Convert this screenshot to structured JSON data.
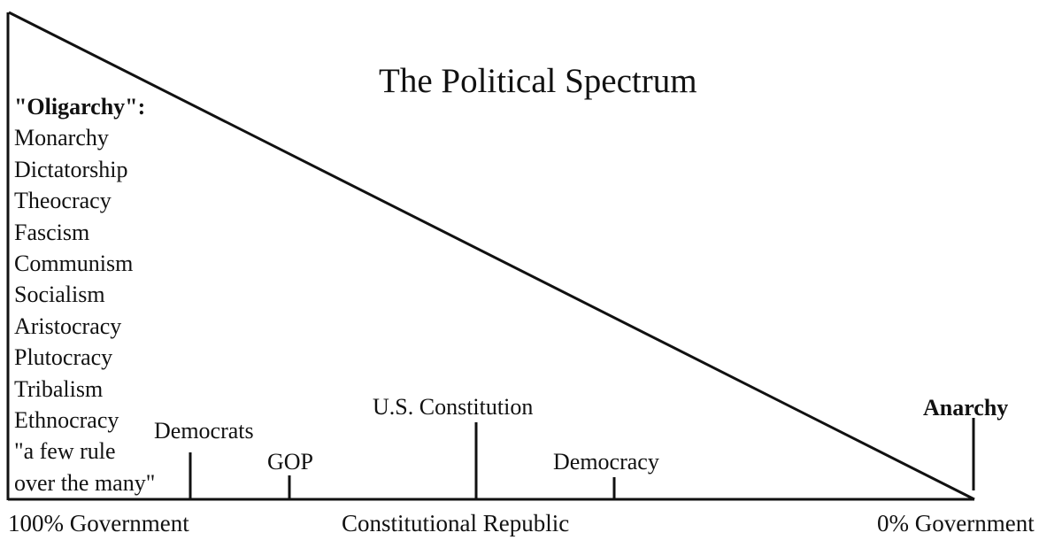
{
  "title": "The Political Spectrum",
  "oligarchy": {
    "heading": "\"Oligarchy\":",
    "items": [
      "Monarchy",
      "Dictatorship",
      "Theocracy",
      "Fascism",
      "Communism",
      "Socialism",
      "Aristocracy",
      "Plutocracy",
      "Tribalism",
      "Ethnocracy",
      "\"a few rule",
      "over the many\""
    ]
  },
  "markers": {
    "democrats": "Democrats",
    "gop": "GOP",
    "us_constitution": "U.S. Constitution",
    "democracy": "Democracy",
    "anarchy": "Anarchy"
  },
  "axis": {
    "left": "100% Government",
    "middle": "Constitutional Republic",
    "right": "0% Government"
  },
  "colors": {
    "line": "#111111",
    "background": "#ffffff"
  }
}
